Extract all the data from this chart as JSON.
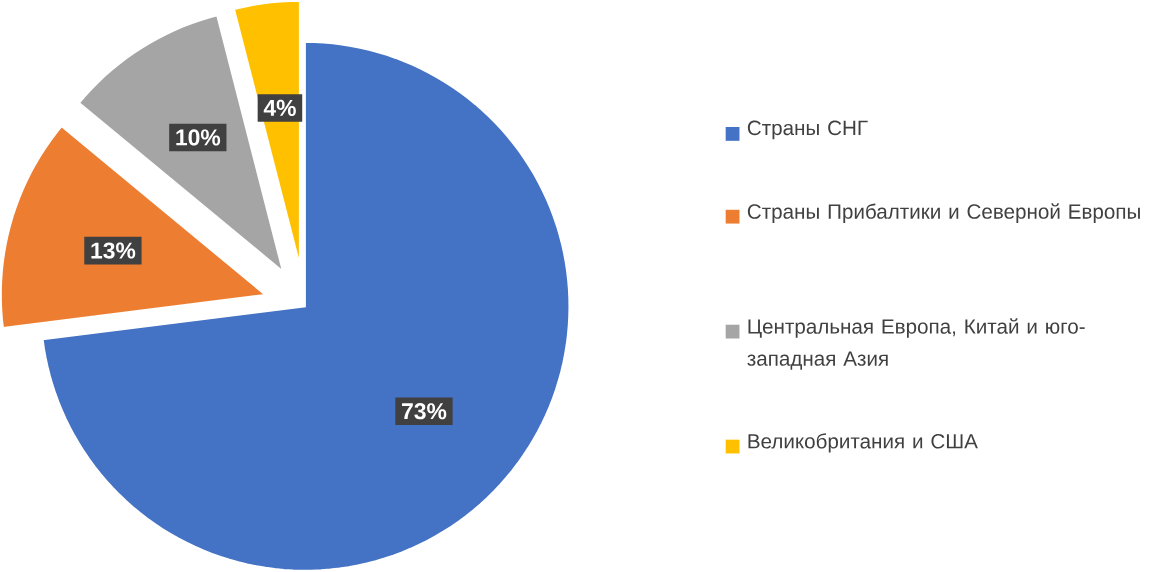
{
  "chart_data": {
    "type": "pie",
    "categories": [
      "Страны СНГ",
      "Страны Прибалтики и Северной Европы",
      "Центральная Европа, Китай и юго-западная Азия",
      "Великобритания и США"
    ],
    "values": [
      73,
      13,
      10,
      4
    ],
    "value_labels": [
      "73%",
      "13%",
      "10%",
      "4%"
    ],
    "colors": [
      "#4472c4",
      "#ed7d31",
      "#a5a5a5",
      "#ffc000"
    ],
    "legend": "right"
  }
}
